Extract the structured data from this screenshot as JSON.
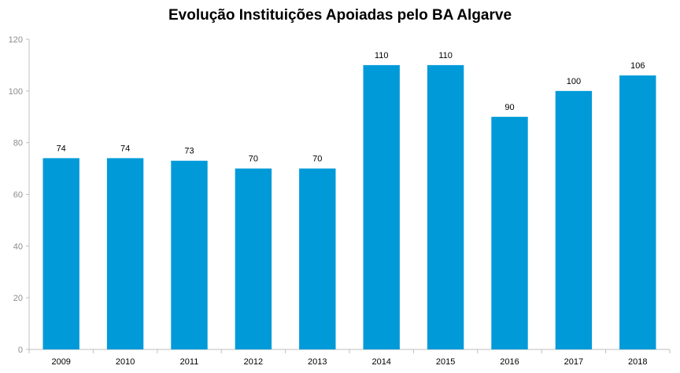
{
  "chart_data": {
    "type": "bar",
    "title": "Evolução Instituições Apoiadas pelo BA Algarve",
    "xlabel": "",
    "ylabel": "",
    "categories": [
      "2009",
      "2010",
      "2011",
      "2012",
      "2013",
      "2014",
      "2015",
      "2016",
      "2017",
      "2018"
    ],
    "values": [
      74,
      74,
      73,
      70,
      70,
      110,
      110,
      90,
      100,
      106
    ],
    "ylim": [
      0,
      120
    ],
    "yticks": [
      0,
      20,
      40,
      60,
      80,
      100,
      120
    ],
    "grid": false,
    "legend": "none",
    "bar_color": "#009ad8",
    "show_data_labels": true
  }
}
